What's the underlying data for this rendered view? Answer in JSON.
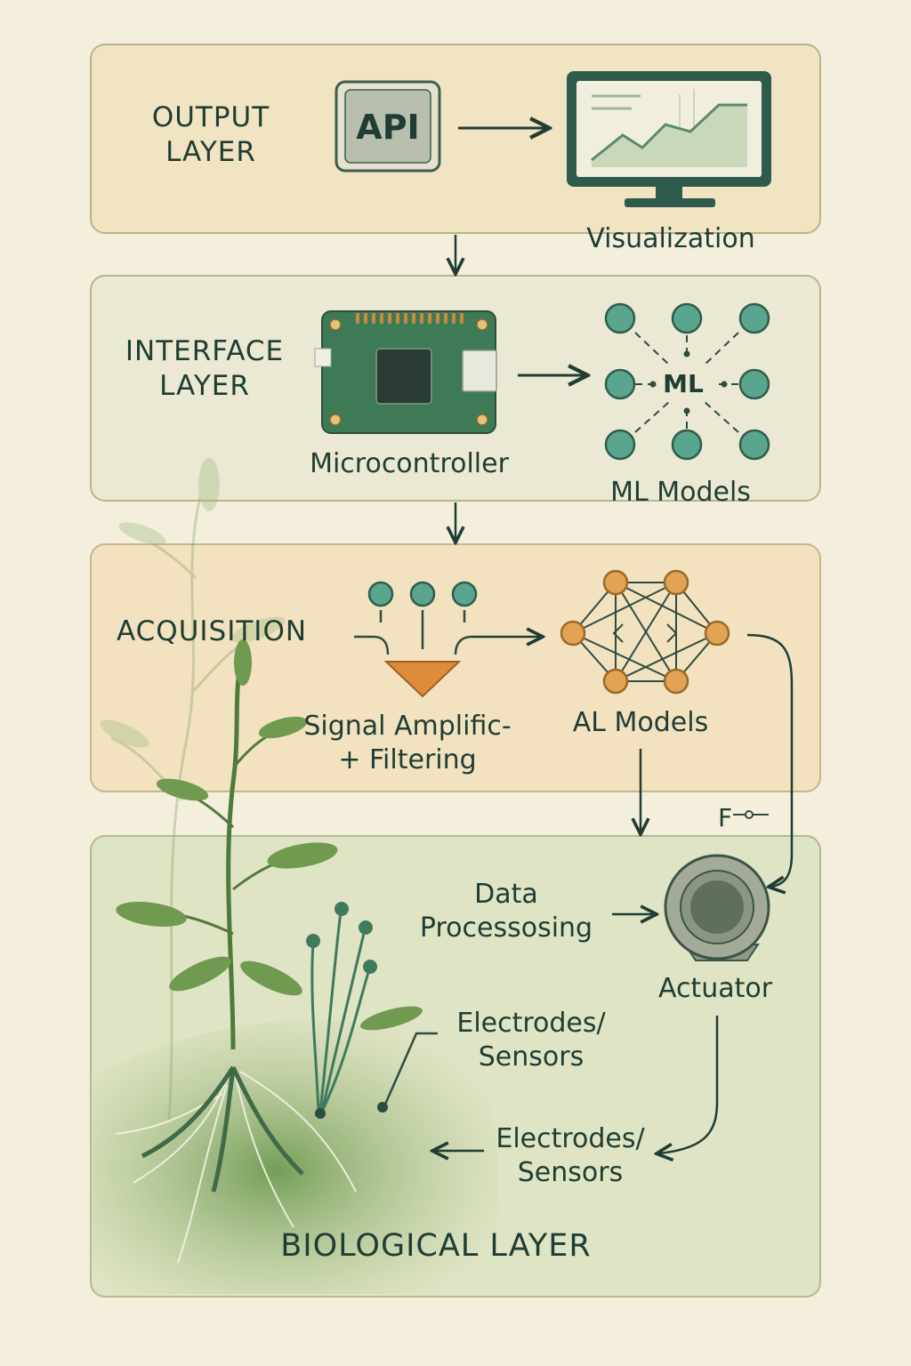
{
  "output_layer": {
    "title_line1": "OUTPUT",
    "title_line2": "LAYER",
    "api_label": "API",
    "visualization_label": "Visualization"
  },
  "interface_layer": {
    "title_line1": "INTERFACE",
    "title_line2": "LAYER",
    "microcontroller_label": "Microcontroller",
    "ml_center_label": "ML",
    "ml_models_label": "ML Models"
  },
  "acquisition_layer": {
    "title": "ACQUISITION",
    "signal_line1": "Signal Amplific-",
    "signal_line2": "+ Filtering",
    "al_models_label": "AL Models"
  },
  "biological_layer": {
    "title": "BIOLOGICAL LAYER",
    "data_processing_line1": "Data",
    "data_processing_line2": "Processosing",
    "actuator_label": "Actuator",
    "feedback_symbol": "F",
    "electrodes_top_line1": "Electrodes/",
    "electrodes_top_line2": "Sensors",
    "electrodes_bottom_line1": "Electrodes/",
    "electrodes_bottom_line2": "Sensors"
  },
  "colors": {
    "background": "#f4efdc",
    "layer_border": "#b9b48a",
    "output_fill": "#f0e4c2",
    "interface_fill": "#ebe9d3",
    "acquisition_fill": "#f2e2c0",
    "biological_fill": "#dfe4c4",
    "ink": "#1f3d33",
    "teal_node": "#5aa58e",
    "orange_node": "#e3a352",
    "pcb_green": "#3e7a55",
    "plant_green": "#6f9a4f"
  }
}
